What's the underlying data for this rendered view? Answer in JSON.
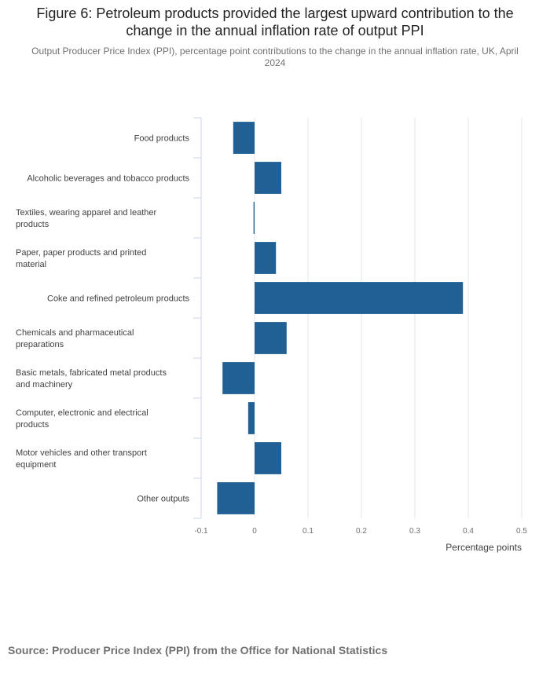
{
  "header": {
    "title": "Figure 6: Petroleum products provided the largest upward contribution to the change in the annual inflation rate of output PPI",
    "subtitle": "Output Producer Price Index (PPI), percentage point contributions to the change in the annual inflation rate, UK, April 2024"
  },
  "footer": {
    "source": "Source: Producer Price Index (PPI) from the Office for National Statistics"
  },
  "colors": {
    "bar": "#206095",
    "grid": "#e6e6e6",
    "axis": "#ccd6eb"
  },
  "chart_data": {
    "type": "bar",
    "orientation": "horizontal",
    "categories": [
      [
        "Food products"
      ],
      [
        "Alcoholic beverages and tobacco products"
      ],
      [
        "Textiles, wearing apparel and leather",
        "products"
      ],
      [
        "Paper, paper products and printed",
        "material"
      ],
      [
        "Coke and refined petroleum products"
      ],
      [
        "Chemicals and pharmaceutical",
        "preparations"
      ],
      [
        "Basic metals, fabricated metal products",
        "and machinery"
      ],
      [
        "Computer, electronic and electrical",
        "products"
      ],
      [
        "Motor vehicles and other transport",
        "equipment"
      ],
      [
        "Other outputs"
      ]
    ],
    "values": [
      -0.04,
      0.05,
      -0.002,
      0.04,
      0.39,
      0.06,
      -0.06,
      -0.012,
      0.05,
      -0.07
    ],
    "xlabel": "Percentage points",
    "xlim": [
      -0.1,
      0.5
    ],
    "xticks": [
      -0.1,
      0,
      0.1,
      0.2,
      0.3,
      0.4,
      0.5
    ],
    "xtick_labels": [
      "-0.1",
      "0",
      "0.1",
      "0.2",
      "0.3",
      "0.4",
      "0.5"
    ],
    "grid": true,
    "legend": "none"
  }
}
